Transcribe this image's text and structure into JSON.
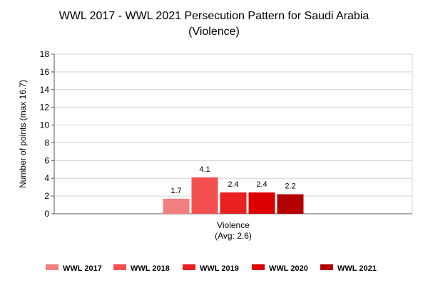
{
  "chart_data": {
    "type": "bar",
    "title_lines": [
      "WWL 2017 - WWL 2021 Persecution Pattern for Saudi Arabia",
      "(Violence)"
    ],
    "ylabel": "Number of points (max 16.7)",
    "ylim": [
      0,
      18
    ],
    "yticks": [
      0,
      2,
      4,
      6,
      8,
      10,
      12,
      14,
      16,
      18
    ],
    "categories": [
      "Violence"
    ],
    "category_sublabels": [
      "(Avg: 2.6)"
    ],
    "grid": true,
    "legend_position": "bottom",
    "series": [
      {
        "name": "WWL 2017",
        "values": [
          1.7
        ],
        "label": "1.7",
        "color": "#f08080"
      },
      {
        "name": "WWL 2018",
        "values": [
          4.1
        ],
        "label": "4.1",
        "color": "#f55050"
      },
      {
        "name": "WWL 2019",
        "values": [
          2.4
        ],
        "label": "2.4",
        "color": "#e82020"
      },
      {
        "name": "WWL 2020",
        "values": [
          2.4
        ],
        "label": "2.4",
        "color": "#dd0000"
      },
      {
        "name": "WWL 2021",
        "values": [
          2.2
        ],
        "label": "2.2",
        "color": "#b30000"
      }
    ]
  }
}
